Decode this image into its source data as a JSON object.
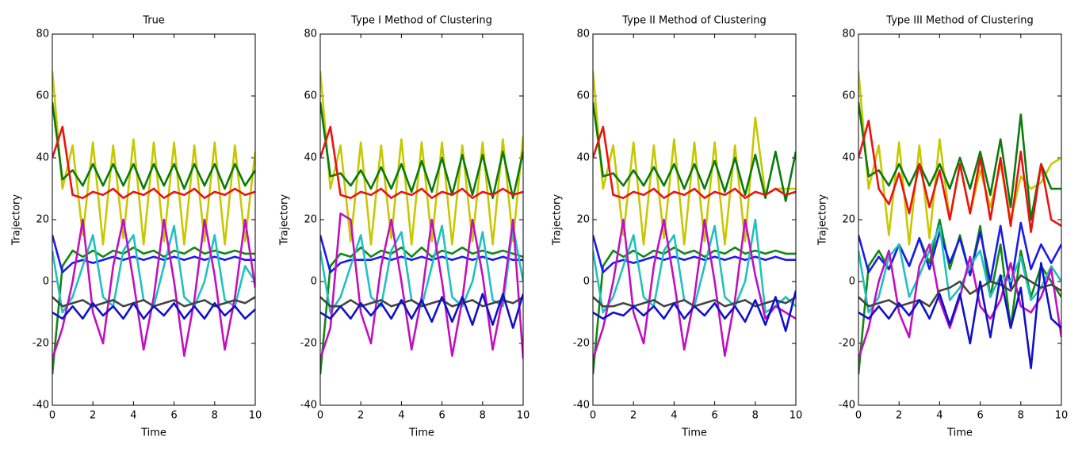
{
  "chart_data": [
    {
      "type": "line",
      "title": "True",
      "xlabel": "Time",
      "ylabel": "Trajectory",
      "xlim": [
        0,
        10
      ],
      "ylim": [
        -40,
        80
      ],
      "xticks": [
        0,
        2,
        4,
        6,
        8,
        10
      ],
      "yticks": [
        -40,
        -20,
        0,
        20,
        40,
        60,
        80
      ],
      "x": [
        0,
        0.5,
        1,
        1.5,
        2,
        2.5,
        3,
        3.5,
        4,
        4.5,
        5,
        5.5,
        6,
        6.5,
        7,
        7.5,
        8,
        8.5,
        9,
        9.5,
        10
      ],
      "series": [
        {
          "color": "#c8c800",
          "values": [
            68,
            30,
            44,
            15,
            45,
            12,
            44,
            14,
            46,
            12,
            45,
            13,
            45,
            12,
            44,
            13,
            45,
            12,
            44,
            13,
            42
          ]
        },
        {
          "color": "#0a7a0a",
          "values": [
            58,
            33,
            36,
            31,
            38,
            31,
            38,
            31,
            38,
            30,
            38,
            31,
            38,
            30,
            38,
            31,
            38,
            30,
            38,
            31,
            36
          ]
        },
        {
          "color": "#ee1111",
          "values": [
            40,
            50,
            28,
            27,
            29,
            28,
            30,
            27,
            29,
            28,
            30,
            27,
            29,
            28,
            30,
            27,
            29,
            28,
            30,
            28,
            29
          ]
        },
        {
          "color": "#118811",
          "values": [
            -30,
            5,
            10,
            8,
            10,
            8,
            10,
            9,
            11,
            9,
            10,
            8,
            10,
            9,
            11,
            9,
            10,
            9,
            10,
            9,
            9
          ]
        },
        {
          "color": "#1a1aee",
          "values": [
            15,
            3,
            6,
            7,
            6,
            7,
            8,
            7,
            8,
            7,
            8,
            7,
            8,
            7,
            8,
            7,
            8,
            7,
            8,
            7,
            7
          ]
        },
        {
          "color": "#22c0c0",
          "values": [
            10,
            -10,
            -5,
            5,
            15,
            -5,
            -8,
            10,
            15,
            -6,
            -8,
            5,
            18,
            -5,
            -8,
            0,
            15,
            -6,
            -8,
            5,
            0
          ]
        },
        {
          "color": "#c010c0",
          "values": [
            -25,
            -15,
            0,
            20,
            -10,
            -20,
            5,
            20,
            0,
            -22,
            -5,
            20,
            0,
            -24,
            -6,
            20,
            2,
            -22,
            -5,
            20,
            -2
          ]
        },
        {
          "color": "#444444",
          "values": [
            -5,
            -8,
            -7,
            -6,
            -8,
            -7,
            -6,
            -8,
            -7,
            -6,
            -8,
            -7,
            -6,
            -8,
            -7,
            -6,
            -8,
            -7,
            -6,
            -7,
            -5
          ]
        },
        {
          "color": "#1010cc",
          "values": [
            -10,
            -12,
            -8,
            -12,
            -7,
            -11,
            -8,
            -12,
            -7,
            -12,
            -8,
            -11,
            -7,
            -12,
            -8,
            -12,
            -7,
            -11,
            -8,
            -12,
            -9
          ]
        }
      ]
    },
    {
      "type": "line",
      "title": "Type I Method of Clustering",
      "xlabel": "Time",
      "ylabel": "Trajectory",
      "xlim": [
        0,
        10
      ],
      "ylim": [
        -40,
        80
      ],
      "xticks": [
        0,
        2,
        4,
        6,
        8,
        10
      ],
      "yticks": [
        -40,
        -20,
        0,
        20,
        40,
        60,
        80
      ],
      "x": [
        0,
        0.5,
        1,
        1.5,
        2,
        2.5,
        3,
        3.5,
        4,
        4.5,
        5,
        5.5,
        6,
        6.5,
        7,
        7.5,
        8,
        8.5,
        9,
        9.5,
        10
      ],
      "series": [
        {
          "color": "#c8c800",
          "values": [
            68,
            30,
            44,
            13,
            45,
            12,
            44,
            14,
            46,
            12,
            45,
            13,
            45,
            12,
            44,
            13,
            45,
            12,
            46,
            13,
            47
          ]
        },
        {
          "color": "#0a7a0a",
          "values": [
            58,
            34,
            35,
            31,
            36,
            30,
            37,
            30,
            38,
            29,
            39,
            29,
            40,
            28,
            41,
            28,
            41,
            27,
            42,
            27,
            42
          ]
        },
        {
          "color": "#ee1111",
          "values": [
            40,
            50,
            28,
            27,
            29,
            28,
            30,
            27,
            29,
            28,
            30,
            27,
            29,
            28,
            30,
            27,
            29,
            28,
            30,
            28,
            29
          ]
        },
        {
          "color": "#118811",
          "values": [
            -30,
            5,
            9,
            8,
            11,
            8,
            10,
            9,
            11,
            8,
            11,
            8,
            10,
            9,
            11,
            9,
            10,
            9,
            10,
            9,
            8
          ]
        },
        {
          "color": "#1a1aee",
          "values": [
            15,
            3,
            6,
            7,
            7,
            7,
            8,
            7,
            8,
            7,
            8,
            7,
            8,
            7,
            8,
            7,
            8,
            7,
            8,
            7,
            7
          ]
        },
        {
          "color": "#22c0c0",
          "values": [
            10,
            -10,
            -5,
            5,
            15,
            -5,
            -8,
            10,
            16,
            -6,
            -8,
            5,
            18,
            -5,
            -8,
            0,
            16,
            -6,
            -8,
            18,
            0
          ]
        },
        {
          "color": "#c010c0",
          "values": [
            -25,
            -15,
            22,
            20,
            -10,
            -20,
            5,
            20,
            0,
            -22,
            -5,
            20,
            0,
            -24,
            -6,
            20,
            2,
            -22,
            -5,
            20,
            -25
          ]
        },
        {
          "color": "#444444",
          "values": [
            -5,
            -8,
            -8,
            -6,
            -8,
            -7,
            -6,
            -8,
            -7,
            -6,
            -8,
            -7,
            -6,
            -8,
            -7,
            -6,
            -8,
            -7,
            -6,
            -7,
            -5
          ]
        },
        {
          "color": "#1010cc",
          "values": [
            -10,
            -12,
            -8,
            -12,
            -7,
            -11,
            -7,
            -12,
            -6,
            -12,
            -6,
            -13,
            -5,
            -13,
            -5,
            -14,
            -4,
            -14,
            -4,
            -15,
            -4
          ]
        }
      ]
    },
    {
      "type": "line",
      "title": "Type II Method of Clustering",
      "xlabel": "Time",
      "ylabel": "Trajectory",
      "xlim": [
        0,
        10
      ],
      "ylim": [
        -40,
        80
      ],
      "xticks": [
        0,
        2,
        4,
        6,
        8,
        10
      ],
      "yticks": [
        -40,
        -20,
        0,
        20,
        40,
        60,
        80
      ],
      "x": [
        0,
        0.5,
        1,
        1.5,
        2,
        2.5,
        3,
        3.5,
        4,
        4.5,
        5,
        5.5,
        6,
        6.5,
        7,
        7.5,
        8,
        8.5,
        9,
        9.5,
        10
      ],
      "series": [
        {
          "color": "#c8c800",
          "values": [
            68,
            30,
            44,
            15,
            45,
            12,
            44,
            14,
            46,
            12,
            45,
            13,
            45,
            12,
            44,
            13,
            53,
            28,
            30,
            30,
            30
          ]
        },
        {
          "color": "#0a7a0a",
          "values": [
            58,
            34,
            35,
            31,
            36,
            31,
            37,
            31,
            38,
            30,
            38,
            30,
            39,
            29,
            40,
            28,
            41,
            27,
            42,
            26,
            42
          ]
        },
        {
          "color": "#ee1111",
          "values": [
            40,
            50,
            28,
            27,
            29,
            28,
            30,
            27,
            29,
            28,
            30,
            27,
            29,
            28,
            30,
            27,
            29,
            28,
            30,
            28,
            29
          ]
        },
        {
          "color": "#118811",
          "values": [
            -30,
            5,
            10,
            8,
            10,
            8,
            10,
            9,
            11,
            9,
            10,
            8,
            10,
            9,
            11,
            9,
            10,
            9,
            10,
            9,
            9
          ]
        },
        {
          "color": "#1a1aee",
          "values": [
            15,
            3,
            6,
            7,
            6,
            7,
            8,
            7,
            8,
            7,
            8,
            7,
            8,
            7,
            8,
            7,
            8,
            7,
            8,
            7,
            7
          ]
        },
        {
          "color": "#22c0c0",
          "values": [
            10,
            -10,
            -5,
            5,
            15,
            -5,
            -8,
            10,
            15,
            -6,
            -8,
            5,
            18,
            -5,
            -8,
            0,
            20,
            -10,
            -8,
            -5,
            -8
          ]
        },
        {
          "color": "#c010c0",
          "values": [
            -25,
            -15,
            0,
            20,
            -10,
            -20,
            5,
            20,
            0,
            -22,
            -5,
            20,
            0,
            -24,
            -6,
            20,
            2,
            -12,
            -8,
            -10,
            -12
          ]
        },
        {
          "color": "#444444",
          "values": [
            -5,
            -8,
            -8,
            -7,
            -8,
            -7,
            -6,
            -8,
            -7,
            -6,
            -8,
            -7,
            -6,
            -8,
            -7,
            -6,
            -8,
            -7,
            -6,
            -7,
            -5
          ]
        },
        {
          "color": "#1010cc",
          "values": [
            -10,
            -12,
            -10,
            -11,
            -8,
            -11,
            -8,
            -12,
            -7,
            -12,
            -8,
            -11,
            -7,
            -12,
            -8,
            -13,
            -6,
            -14,
            -5,
            -16,
            -3
          ]
        }
      ]
    },
    {
      "type": "line",
      "title": "Type III Method of Clustering",
      "xlabel": "Time",
      "ylabel": "Trajectory",
      "xlim": [
        0,
        10
      ],
      "ylim": [
        -40,
        80
      ],
      "xticks": [
        0,
        2,
        4,
        6,
        8,
        10
      ],
      "yticks": [
        -40,
        -20,
        0,
        20,
        40,
        60,
        80
      ],
      "x": [
        0,
        0.5,
        1,
        1.5,
        2,
        2.5,
        3,
        3.5,
        4,
        4.5,
        5,
        5.5,
        6,
        6.5,
        7,
        7.5,
        8,
        8.5,
        9,
        9.5,
        10
      ],
      "series": [
        {
          "color": "#c8c800",
          "values": [
            68,
            30,
            44,
            15,
            45,
            12,
            44,
            14,
            46,
            20,
            38,
            22,
            36,
            24,
            38,
            20,
            34,
            30,
            32,
            38,
            40
          ]
        },
        {
          "color": "#0a7a0a",
          "values": [
            58,
            34,
            36,
            31,
            38,
            31,
            38,
            31,
            38,
            30,
            40,
            30,
            42,
            28,
            46,
            24,
            54,
            20,
            38,
            30,
            30
          ]
        },
        {
          "color": "#ee1111",
          "values": [
            40,
            52,
            30,
            25,
            35,
            22,
            38,
            24,
            36,
            20,
            38,
            22,
            40,
            20,
            40,
            18,
            42,
            16,
            38,
            20,
            18
          ]
        },
        {
          "color": "#118811",
          "values": [
            -30,
            5,
            10,
            4,
            12,
            5,
            14,
            6,
            20,
            4,
            15,
            2,
            18,
            -5,
            12,
            -15,
            10,
            -5,
            5,
            0,
            -5
          ]
        },
        {
          "color": "#1a1aee",
          "values": [
            15,
            3,
            8,
            4,
            12,
            5,
            14,
            4,
            16,
            6,
            14,
            2,
            16,
            0,
            18,
            -2,
            19,
            4,
            12,
            6,
            12
          ]
        },
        {
          "color": "#22c0c0",
          "values": [
            10,
            -10,
            -5,
            8,
            12,
            -5,
            2,
            10,
            18,
            -6,
            -2,
            5,
            10,
            -5,
            2,
            0,
            8,
            -6,
            -2,
            5,
            0
          ]
        },
        {
          "color": "#c010c0",
          "values": [
            -25,
            -15,
            0,
            10,
            -10,
            -18,
            5,
            12,
            -6,
            -15,
            -5,
            8,
            -8,
            -12,
            -6,
            6,
            -8,
            -10,
            -5,
            4,
            -18
          ]
        },
        {
          "color": "#444444",
          "values": [
            -5,
            -8,
            -7,
            -6,
            -8,
            -7,
            -6,
            -8,
            -3,
            -2,
            0,
            -4,
            -2,
            0,
            -1,
            -3,
            2,
            0,
            -2,
            -1,
            -3
          ]
        },
        {
          "color": "#1010cc",
          "values": [
            -10,
            -12,
            -8,
            -12,
            -7,
            -11,
            -6,
            -12,
            -4,
            -14,
            -4,
            -20,
            0,
            -18,
            2,
            -15,
            -2,
            -28,
            6,
            -12,
            -15
          ]
        }
      ]
    }
  ]
}
